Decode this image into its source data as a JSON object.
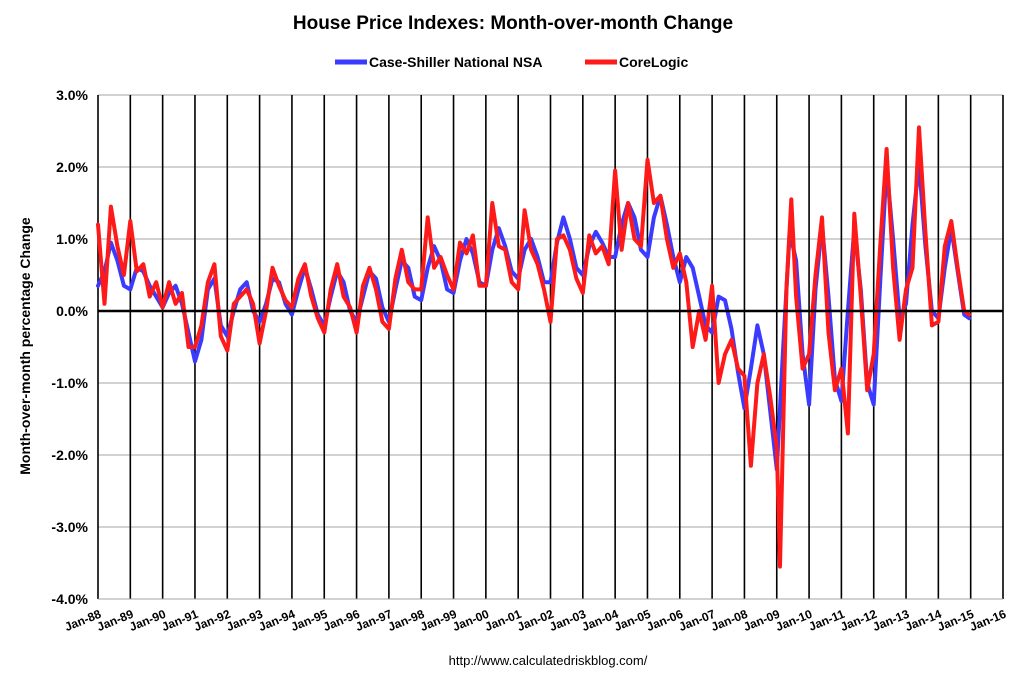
{
  "chart_data": {
    "type": "line",
    "title": "House Price Indexes: Month-over-month Change",
    "ylabel": "Month-over-month percentage Change",
    "xlabel": "",
    "source": "http://www.calculatedriskblog.com/",
    "ylim": [
      -4.0,
      3.0
    ],
    "yticks": [
      {
        "value": 3.0,
        "label": "3.0%"
      },
      {
        "value": 2.0,
        "label": "2.0%"
      },
      {
        "value": 1.0,
        "label": "1.0%"
      },
      {
        "value": 0.0,
        "label": "0.0%"
      },
      {
        "value": -1.0,
        "label": "-1.0%"
      },
      {
        "value": -2.0,
        "label": "-2.0%"
      },
      {
        "value": -3.0,
        "label": "-3.0%"
      },
      {
        "value": -4.0,
        "label": "-4.0%"
      }
    ],
    "xlim": [
      1988.0,
      2016.0
    ],
    "xticks": [
      {
        "value": 1988,
        "label": "Jan-88"
      },
      {
        "value": 1989,
        "label": "Jan-89"
      },
      {
        "value": 1990,
        "label": "Jan-90"
      },
      {
        "value": 1991,
        "label": "Jan-91"
      },
      {
        "value": 1992,
        "label": "Jan-92"
      },
      {
        "value": 1993,
        "label": "Jan-93"
      },
      {
        "value": 1994,
        "label": "Jan-94"
      },
      {
        "value": 1995,
        "label": "Jan-95"
      },
      {
        "value": 1996,
        "label": "Jan-96"
      },
      {
        "value": 1997,
        "label": "Jan-97"
      },
      {
        "value": 1998,
        "label": "Jan-98"
      },
      {
        "value": 1999,
        "label": "Jan-99"
      },
      {
        "value": 2000,
        "label": "Jan-00"
      },
      {
        "value": 2001,
        "label": "Jan-01"
      },
      {
        "value": 2002,
        "label": "Jan-02"
      },
      {
        "value": 2003,
        "label": "Jan-03"
      },
      {
        "value": 2004,
        "label": "Jan-04"
      },
      {
        "value": 2005,
        "label": "Jan-05"
      },
      {
        "value": 2006,
        "label": "Jan-06"
      },
      {
        "value": 2007,
        "label": "Jan-07"
      },
      {
        "value": 2008,
        "label": "Jan-08"
      },
      {
        "value": 2009,
        "label": "Jan-09"
      },
      {
        "value": 2010,
        "label": "Jan-10"
      },
      {
        "value": 2011,
        "label": "Jan-11"
      },
      {
        "value": 2012,
        "label": "Jan-12"
      },
      {
        "value": 2013,
        "label": "Jan-13"
      },
      {
        "value": 2014,
        "label": "Jan-14"
      },
      {
        "value": 2015,
        "label": "Jan-15"
      },
      {
        "value": 2016,
        "label": "Jan-16"
      }
    ],
    "legend_position": "top-center",
    "series": [
      {
        "name": "Case-Shiller National NSA",
        "color": "#3b3bff",
        "points": [
          [
            1988.0,
            0.35
          ],
          [
            1988.2,
            0.55
          ],
          [
            1988.4,
            0.95
          ],
          [
            1988.6,
            0.7
          ],
          [
            1988.8,
            0.35
          ],
          [
            1989.0,
            0.3
          ],
          [
            1989.2,
            0.6
          ],
          [
            1989.4,
            0.55
          ],
          [
            1989.6,
            0.35
          ],
          [
            1989.8,
            0.2
          ],
          [
            1990.0,
            0.05
          ],
          [
            1990.2,
            0.25
          ],
          [
            1990.4,
            0.35
          ],
          [
            1990.6,
            0.1
          ],
          [
            1990.8,
            -0.3
          ],
          [
            1991.0,
            -0.7
          ],
          [
            1991.2,
            -0.4
          ],
          [
            1991.4,
            0.3
          ],
          [
            1991.6,
            0.45
          ],
          [
            1991.8,
            -0.2
          ],
          [
            1992.0,
            -0.35
          ],
          [
            1992.2,
            0.0
          ],
          [
            1992.4,
            0.3
          ],
          [
            1992.6,
            0.4
          ],
          [
            1992.8,
            0.0
          ],
          [
            1993.0,
            -0.15
          ],
          [
            1993.2,
            0.1
          ],
          [
            1993.4,
            0.45
          ],
          [
            1993.6,
            0.4
          ],
          [
            1993.8,
            0.1
          ],
          [
            1994.0,
            -0.05
          ],
          [
            1994.2,
            0.3
          ],
          [
            1994.4,
            0.6
          ],
          [
            1994.6,
            0.3
          ],
          [
            1994.8,
            -0.05
          ],
          [
            1995.0,
            -0.2
          ],
          [
            1995.2,
            0.2
          ],
          [
            1995.4,
            0.55
          ],
          [
            1995.6,
            0.4
          ],
          [
            1995.8,
            0.0
          ],
          [
            1996.0,
            -0.15
          ],
          [
            1996.2,
            0.2
          ],
          [
            1996.4,
            0.55
          ],
          [
            1996.6,
            0.45
          ],
          [
            1996.8,
            0.05
          ],
          [
            1997.0,
            -0.15
          ],
          [
            1997.2,
            0.3
          ],
          [
            1997.4,
            0.7
          ],
          [
            1997.6,
            0.6
          ],
          [
            1997.8,
            0.2
          ],
          [
            1998.0,
            0.15
          ],
          [
            1998.2,
            0.6
          ],
          [
            1998.4,
            0.9
          ],
          [
            1998.6,
            0.7
          ],
          [
            1998.8,
            0.3
          ],
          [
            1999.0,
            0.25
          ],
          [
            1999.2,
            0.7
          ],
          [
            1999.4,
            1.0
          ],
          [
            1999.6,
            0.8
          ],
          [
            1999.8,
            0.4
          ],
          [
            2000.0,
            0.35
          ],
          [
            2000.2,
            0.85
          ],
          [
            2000.4,
            1.15
          ],
          [
            2000.6,
            0.9
          ],
          [
            2000.8,
            0.55
          ],
          [
            2001.0,
            0.45
          ],
          [
            2001.2,
            0.85
          ],
          [
            2001.4,
            1.0
          ],
          [
            2001.6,
            0.75
          ],
          [
            2001.8,
            0.4
          ],
          [
            2002.0,
            0.4
          ],
          [
            2002.2,
            0.95
          ],
          [
            2002.4,
            1.3
          ],
          [
            2002.6,
            1.0
          ],
          [
            2002.8,
            0.6
          ],
          [
            2003.0,
            0.5
          ],
          [
            2003.2,
            0.9
          ],
          [
            2003.4,
            1.1
          ],
          [
            2003.6,
            0.95
          ],
          [
            2003.8,
            0.75
          ],
          [
            2004.0,
            0.75
          ],
          [
            2004.2,
            1.2
          ],
          [
            2004.4,
            1.5
          ],
          [
            2004.6,
            1.3
          ],
          [
            2004.8,
            0.85
          ],
          [
            2005.0,
            0.75
          ],
          [
            2005.2,
            1.3
          ],
          [
            2005.4,
            1.6
          ],
          [
            2005.6,
            1.2
          ],
          [
            2005.8,
            0.75
          ],
          [
            2006.0,
            0.4
          ],
          [
            2006.2,
            0.75
          ],
          [
            2006.4,
            0.6
          ],
          [
            2006.6,
            0.2
          ],
          [
            2006.8,
            -0.2
          ],
          [
            2007.0,
            -0.3
          ],
          [
            2007.2,
            0.2
          ],
          [
            2007.4,
            0.15
          ],
          [
            2007.6,
            -0.25
          ],
          [
            2007.8,
            -0.85
          ],
          [
            2008.0,
            -1.35
          ],
          [
            2008.2,
            -0.8
          ],
          [
            2008.4,
            -0.2
          ],
          [
            2008.6,
            -0.6
          ],
          [
            2008.8,
            -1.4
          ],
          [
            2009.0,
            -2.2
          ],
          [
            2009.2,
            -0.5
          ],
          [
            2009.4,
            1.1
          ],
          [
            2009.6,
            0.7
          ],
          [
            2009.8,
            -0.6
          ],
          [
            2010.0,
            -1.3
          ],
          [
            2010.2,
            0.3
          ],
          [
            2010.4,
            1.2
          ],
          [
            2010.6,
            0.2
          ],
          [
            2010.8,
            -0.95
          ],
          [
            2011.0,
            -1.25
          ],
          [
            2011.2,
            0.0
          ],
          [
            2011.4,
            1.15
          ],
          [
            2011.6,
            0.3
          ],
          [
            2011.8,
            -1.0
          ],
          [
            2012.0,
            -1.3
          ],
          [
            2012.2,
            0.4
          ],
          [
            2012.4,
            2.0
          ],
          [
            2012.6,
            1.0
          ],
          [
            2012.8,
            -0.1
          ],
          [
            2013.0,
            0.1
          ],
          [
            2013.2,
            1.2
          ],
          [
            2013.4,
            2.05
          ],
          [
            2013.6,
            0.9
          ],
          [
            2013.8,
            0.0
          ],
          [
            2014.0,
            -0.1
          ],
          [
            2014.2,
            0.6
          ],
          [
            2014.4,
            1.15
          ],
          [
            2014.6,
            0.55
          ],
          [
            2014.8,
            -0.05
          ],
          [
            2014.95,
            -0.1
          ]
        ]
      },
      {
        "name": "CoreLogic",
        "color": "#ff1a1a",
        "points": [
          [
            1988.0,
            1.2
          ],
          [
            1988.2,
            0.1
          ],
          [
            1988.4,
            1.45
          ],
          [
            1988.6,
            0.9
          ],
          [
            1988.8,
            0.5
          ],
          [
            1989.0,
            1.25
          ],
          [
            1989.2,
            0.55
          ],
          [
            1989.4,
            0.65
          ],
          [
            1989.6,
            0.2
          ],
          [
            1989.8,
            0.4
          ],
          [
            1990.0,
            0.05
          ],
          [
            1990.2,
            0.4
          ],
          [
            1990.4,
            0.1
          ],
          [
            1990.6,
            0.25
          ],
          [
            1990.8,
            -0.5
          ],
          [
            1991.0,
            -0.5
          ],
          [
            1991.2,
            -0.2
          ],
          [
            1991.4,
            0.4
          ],
          [
            1991.6,
            0.65
          ],
          [
            1991.8,
            -0.35
          ],
          [
            1992.0,
            -0.55
          ],
          [
            1992.2,
            0.1
          ],
          [
            1992.4,
            0.2
          ],
          [
            1992.6,
            0.3
          ],
          [
            1992.8,
            0.1
          ],
          [
            1993.0,
            -0.45
          ],
          [
            1993.2,
            0.0
          ],
          [
            1993.4,
            0.6
          ],
          [
            1993.6,
            0.35
          ],
          [
            1993.8,
            0.15
          ],
          [
            1994.0,
            0.05
          ],
          [
            1994.2,
            0.45
          ],
          [
            1994.4,
            0.65
          ],
          [
            1994.6,
            0.2
          ],
          [
            1994.8,
            -0.1
          ],
          [
            1995.0,
            -0.3
          ],
          [
            1995.2,
            0.3
          ],
          [
            1995.4,
            0.65
          ],
          [
            1995.6,
            0.2
          ],
          [
            1995.8,
            0.05
          ],
          [
            1996.0,
            -0.3
          ],
          [
            1996.2,
            0.35
          ],
          [
            1996.4,
            0.6
          ],
          [
            1996.6,
            0.3
          ],
          [
            1996.8,
            -0.15
          ],
          [
            1997.0,
            -0.25
          ],
          [
            1997.2,
            0.45
          ],
          [
            1997.4,
            0.85
          ],
          [
            1997.6,
            0.4
          ],
          [
            1997.8,
            0.3
          ],
          [
            1998.0,
            0.3
          ],
          [
            1998.2,
            1.3
          ],
          [
            1998.4,
            0.6
          ],
          [
            1998.6,
            0.75
          ],
          [
            1998.8,
            0.5
          ],
          [
            1999.0,
            0.3
          ],
          [
            1999.2,
            0.95
          ],
          [
            1999.4,
            0.8
          ],
          [
            1999.6,
            1.05
          ],
          [
            1999.8,
            0.35
          ],
          [
            2000.0,
            0.35
          ],
          [
            2000.2,
            1.5
          ],
          [
            2000.4,
            0.9
          ],
          [
            2000.6,
            0.85
          ],
          [
            2000.8,
            0.4
          ],
          [
            2001.0,
            0.3
          ],
          [
            2001.2,
            1.4
          ],
          [
            2001.4,
            0.85
          ],
          [
            2001.6,
            0.65
          ],
          [
            2001.8,
            0.3
          ],
          [
            2002.0,
            -0.15
          ],
          [
            2002.2,
            1.0
          ],
          [
            2002.4,
            1.05
          ],
          [
            2002.6,
            0.85
          ],
          [
            2002.8,
            0.45
          ],
          [
            2003.0,
            0.25
          ],
          [
            2003.2,
            1.05
          ],
          [
            2003.4,
            0.8
          ],
          [
            2003.6,
            0.9
          ],
          [
            2003.8,
            0.65
          ],
          [
            2004.0,
            1.95
          ],
          [
            2004.2,
            0.85
          ],
          [
            2004.4,
            1.5
          ],
          [
            2004.6,
            1.0
          ],
          [
            2004.8,
            0.9
          ],
          [
            2005.0,
            2.1
          ],
          [
            2005.2,
            1.5
          ],
          [
            2005.4,
            1.6
          ],
          [
            2005.6,
            1.0
          ],
          [
            2005.8,
            0.6
          ],
          [
            2006.0,
            0.8
          ],
          [
            2006.2,
            0.4
          ],
          [
            2006.4,
            -0.5
          ],
          [
            2006.6,
            0.0
          ],
          [
            2006.8,
            -0.4
          ],
          [
            2007.0,
            0.35
          ],
          [
            2007.2,
            -1.0
          ],
          [
            2007.4,
            -0.6
          ],
          [
            2007.6,
            -0.4
          ],
          [
            2007.8,
            -0.8
          ],
          [
            2008.0,
            -0.9
          ],
          [
            2008.2,
            -2.15
          ],
          [
            2008.4,
            -1.0
          ],
          [
            2008.6,
            -0.6
          ],
          [
            2008.8,
            -1.2
          ],
          [
            2009.0,
            -1.9
          ],
          [
            2009.1,
            -3.55
          ],
          [
            2009.3,
            0.3
          ],
          [
            2009.45,
            1.55
          ],
          [
            2009.6,
            0.2
          ],
          [
            2009.8,
            -0.8
          ],
          [
            2010.0,
            -0.6
          ],
          [
            2010.2,
            0.5
          ],
          [
            2010.4,
            1.3
          ],
          [
            2010.6,
            -0.3
          ],
          [
            2010.8,
            -1.1
          ],
          [
            2011.0,
            -0.8
          ],
          [
            2011.2,
            -1.7
          ],
          [
            2011.4,
            1.35
          ],
          [
            2011.6,
            0.2
          ],
          [
            2011.8,
            -1.1
          ],
          [
            2012.0,
            -0.6
          ],
          [
            2012.2,
            0.9
          ],
          [
            2012.4,
            2.25
          ],
          [
            2012.6,
            0.6
          ],
          [
            2012.8,
            -0.4
          ],
          [
            2013.0,
            0.3
          ],
          [
            2013.2,
            0.6
          ],
          [
            2013.4,
            2.55
          ],
          [
            2013.6,
            1.1
          ],
          [
            2013.8,
            -0.2
          ],
          [
            2014.0,
            -0.15
          ],
          [
            2014.2,
            0.9
          ],
          [
            2014.4,
            1.25
          ],
          [
            2014.6,
            0.6
          ],
          [
            2014.8,
            0.0
          ],
          [
            2014.95,
            -0.05
          ]
        ]
      }
    ]
  }
}
